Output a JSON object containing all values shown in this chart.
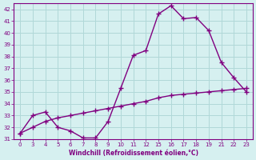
{
  "xlabel": "Windchill (Refroidissement éolien,°C)",
  "background_color": "#d6f0f0",
  "line_color": "#800080",
  "grid_color": "#b0d8d8",
  "x_labels": [
    0,
    3,
    4,
    5,
    6,
    7,
    8,
    9,
    10,
    11,
    12,
    15,
    16,
    17,
    18,
    19,
    21,
    22,
    23
  ],
  "y_windchill": [
    31.5,
    33.0,
    33.3,
    32.0,
    31.7,
    31.1,
    31.1,
    32.5,
    35.3,
    38.1,
    38.5,
    41.6,
    42.3,
    41.2,
    41.3,
    40.2,
    37.5,
    36.2,
    35.0
  ],
  "y_temp": [
    31.5,
    32.0,
    32.5,
    32.8,
    33.0,
    33.2,
    33.4,
    33.6,
    33.8,
    34.0,
    34.2,
    34.5,
    34.7,
    34.8,
    34.9,
    35.0,
    35.1,
    35.2,
    35.3
  ],
  "ylim": [
    31,
    42.5
  ],
  "yticks": [
    31,
    32,
    33,
    34,
    35,
    36,
    37,
    38,
    39,
    40,
    41,
    42
  ],
  "marker_size": 2.5,
  "line_width": 1.0
}
